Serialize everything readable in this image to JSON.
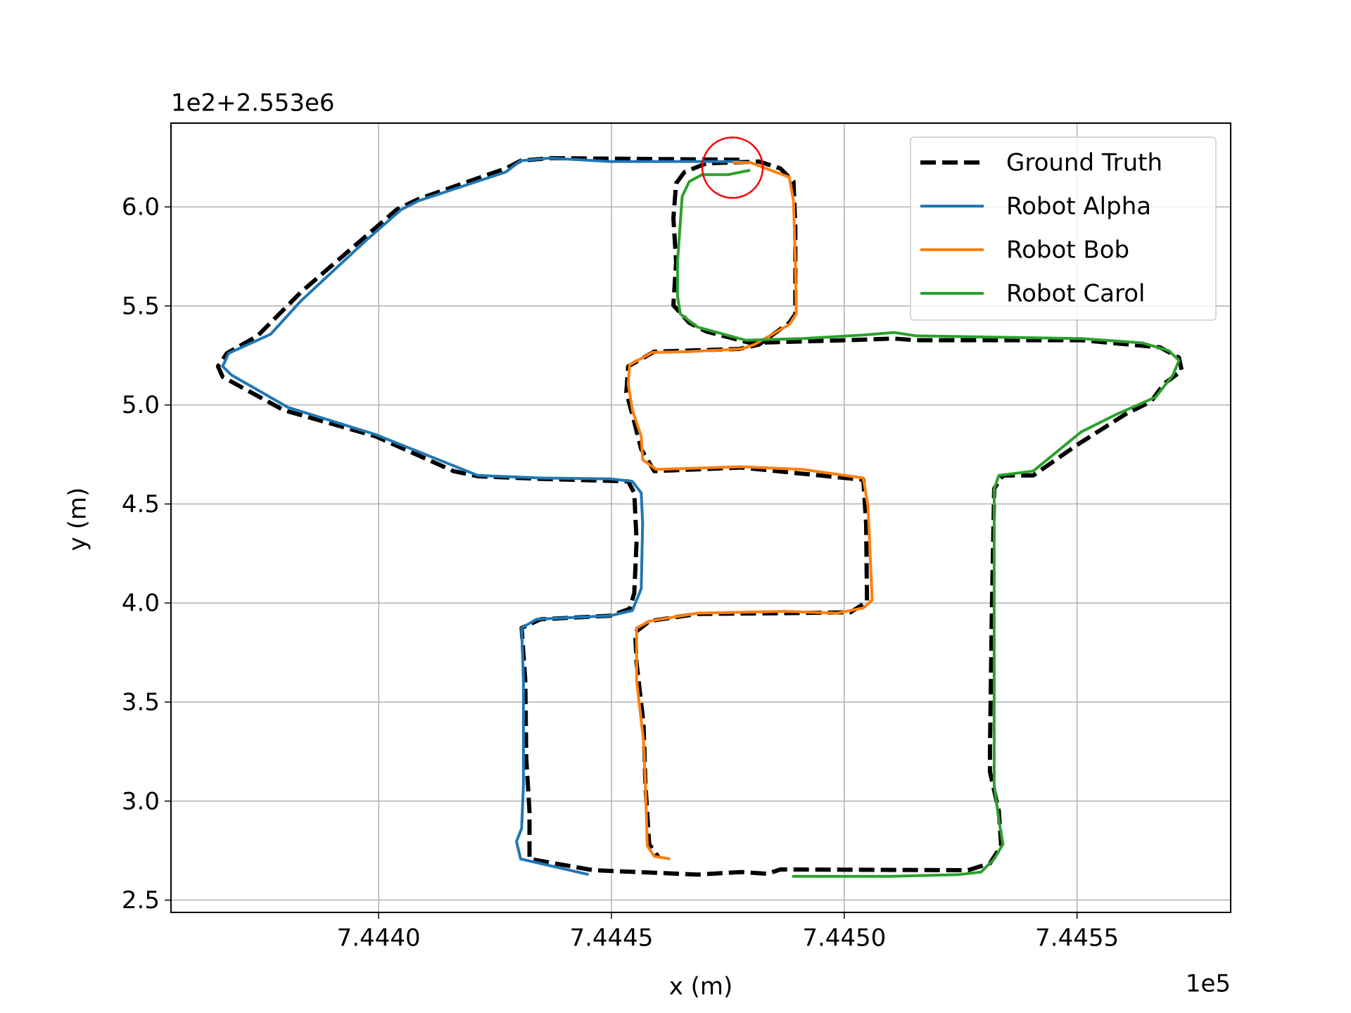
{
  "chart_data": {
    "type": "line",
    "x_label": "x (m)",
    "y_label": "y (m)",
    "x_offset_label": "1e5",
    "y_offset_label": "1e2+2.553e6",
    "xlim": [
      7.443554,
      7.44583
    ],
    "ylim": [
      2.438,
      6.423
    ],
    "xticks": [
      {
        "value": 7.444,
        "label": "7.4440"
      },
      7.4445,
      {
        "value": 7.445,
        "label": "7.4450"
      },
      7.4455
    ],
    "yticks": [
      2.5,
      {
        "value": 3,
        "label": "3.0"
      },
      3.5,
      {
        "value": 4,
        "label": "4.0"
      },
      4.5,
      {
        "value": 5,
        "label": "5.0"
      },
      5.5,
      {
        "value": 6,
        "label": "6.0"
      }
    ],
    "grid": true,
    "legend": "upper right",
    "highlight": {
      "x": 7.44476,
      "y": 6.198,
      "color": "#ff0000"
    },
    "series": [
      {
        "name": "Ground Truth",
        "color": "#000000",
        "linestyle": "dashed",
        "x": [
          7.444775,
          7.444367,
          7.444305,
          7.444273,
          7.444086,
          7.444039,
          7.443974,
          7.443833,
          7.44374,
          7.443674,
          7.443655,
          7.443665,
          7.443796,
          7.443993,
          7.444161,
          7.444213,
          7.444348,
          7.444536,
          7.444549,
          7.444554,
          7.444549,
          7.444539,
          7.444498,
          7.444348,
          7.444307,
          7.444315,
          7.444317,
          7.444324,
          7.444324,
          7.444461,
          7.444685,
          7.444779,
          7.444835,
          7.444863,
          7.445266,
          7.445313,
          7.445337,
          7.445332,
          7.445313,
          7.445313,
          7.445317,
          7.445322,
          7.445341,
          7.445406,
          7.4455,
          7.445603,
          7.445659,
          7.445687,
          7.445725,
          7.445719,
          7.445678,
          7.445509,
          7.445154,
          7.445107,
          7.445004,
          7.444798,
          7.444704,
          7.444667,
          7.444633,
          7.444639,
          7.444633,
          7.444639,
          7.444657,
          7.444704,
          7.444817,
          7.444863,
          7.444891,
          7.444895,
          7.444895,
          7.444882,
          7.444817,
          7.444775,
          7.444592,
          7.444536,
          7.444532,
          7.444545,
          7.444564,
          7.444592,
          7.444779,
          7.445041,
          7.445047,
          7.445049,
          7.445013,
          7.444873,
          7.444685,
          7.444582,
          7.444551,
          7.444554,
          7.444569,
          7.444573,
          7.444581,
          7.444601
        ],
        "values": [
          6.238,
          6.246,
          6.233,
          6.194,
          6.04,
          5.987,
          5.855,
          5.569,
          5.349,
          5.261,
          5.195,
          5.142,
          4.974,
          4.842,
          4.666,
          4.64,
          4.627,
          4.614,
          4.556,
          4.314,
          4.05,
          3.971,
          3.936,
          3.918,
          3.874,
          3.61,
          3.214,
          2.95,
          2.708,
          2.651,
          2.629,
          2.642,
          2.633,
          2.655,
          2.651,
          2.686,
          2.774,
          2.95,
          3.148,
          3.258,
          3.962,
          4.578,
          4.644,
          4.644,
          4.798,
          4.952,
          5.018,
          5.107,
          5.173,
          5.239,
          5.291,
          5.327,
          5.327,
          5.335,
          5.327,
          5.313,
          5.371,
          5.415,
          5.503,
          5.723,
          5.943,
          6.119,
          6.176,
          6.22,
          6.229,
          6.194,
          6.128,
          5.899,
          5.459,
          5.415,
          5.305,
          5.283,
          5.269,
          5.195,
          5.063,
          4.952,
          4.776,
          4.666,
          4.684,
          4.622,
          4.402,
          4.006,
          3.953,
          3.949,
          3.945,
          3.909,
          3.852,
          3.698,
          3.39,
          3.082,
          2.783,
          2.717
        ]
      },
      {
        "name": "Robot Alpha",
        "color": "#1f77b4",
        "linestyle": "solid",
        "x": [
          7.444451,
          7.444305,
          7.444296,
          7.444307,
          7.444311,
          7.444311,
          7.444307,
          7.444339,
          7.444498,
          7.444545,
          7.444564,
          7.444567,
          7.444564,
          7.444545,
          7.444498,
          7.444348,
          7.444213,
          7.443993,
          7.443805,
          7.443684,
          7.443665,
          7.443678,
          7.443768,
          7.443833,
          7.443974,
          7.444049,
          7.444086,
          7.444273,
          7.444305,
          7.444367,
          7.444498,
          7.444751,
          7.444775
        ],
        "values": [
          2.629,
          2.708,
          2.796,
          2.862,
          3.082,
          3.61,
          3.874,
          3.918,
          3.936,
          3.962,
          4.072,
          4.402,
          4.556,
          4.614,
          4.627,
          4.631,
          4.644,
          4.851,
          4.988,
          5.151,
          5.195,
          5.261,
          5.357,
          5.525,
          5.833,
          5.987,
          6.031,
          6.176,
          6.233,
          6.246,
          6.229,
          6.229,
          6.229
        ]
      },
      {
        "name": "Robot Bob",
        "color": "#ff7f0e",
        "linestyle": "solid",
        "x": [
          7.44476,
          7.444798,
          7.444882,
          7.444891,
          7.444895,
          7.444897,
          7.444882,
          7.444807,
          7.444779,
          7.444667,
          7.444588,
          7.444539,
          7.444536,
          7.444545,
          7.444564,
          7.444567,
          7.444596,
          7.444779,
          7.44491,
          7.445041,
          7.445051,
          7.445056,
          7.44506,
          7.445041,
          7.444985,
          7.444873,
          7.444685,
          7.444582,
          7.444554,
          7.444554,
          7.444569,
          7.444573,
          7.444577,
          7.444592,
          7.444626
        ],
        "values": [
          6.224,
          6.224,
          6.15,
          6.031,
          5.723,
          5.459,
          5.406,
          5.305,
          5.283,
          5.269,
          5.265,
          5.203,
          5.107,
          4.974,
          4.842,
          4.724,
          4.675,
          4.688,
          4.675,
          4.631,
          4.49,
          4.226,
          4.015,
          3.975,
          3.949,
          3.958,
          3.949,
          3.909,
          3.874,
          3.61,
          3.302,
          3.082,
          2.774,
          2.721,
          2.708
        ]
      },
      {
        "name": "Robot Carol",
        "color": "#2ca02c",
        "linestyle": "solid",
        "x": [
          7.444798,
          7.444751,
          7.444695,
          7.444667,
          7.444652,
          7.444642,
          7.444642,
          7.444648,
          7.444685,
          7.444788,
          7.44491,
          7.445041,
          7.445107,
          7.445154,
          7.445509,
          7.445641,
          7.445697,
          7.445719,
          7.445706,
          7.445669,
          7.445584,
          7.445509,
          7.445406,
          7.445332,
          7.445322,
          7.445322,
          7.445332,
          7.445341,
          7.445322,
          7.445294,
          7.445247,
          7.445097,
          7.444888
        ],
        "values": [
          6.185,
          6.163,
          6.163,
          6.128,
          6.053,
          5.723,
          5.547,
          5.459,
          5.393,
          5.327,
          5.335,
          5.353,
          5.366,
          5.349,
          5.335,
          5.313,
          5.274,
          5.225,
          5.151,
          5.04,
          4.952,
          4.864,
          4.666,
          4.644,
          4.578,
          3.082,
          2.906,
          2.783,
          2.708,
          2.642,
          2.629,
          2.62,
          2.62
        ]
      }
    ]
  }
}
